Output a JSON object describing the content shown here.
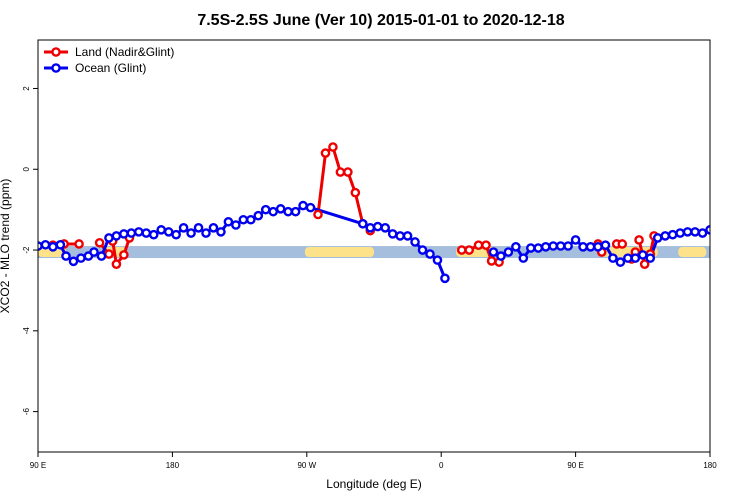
{
  "chart_data": {
    "type": "line",
    "title": "7.5S-2.5S June (Ver 10)   2015-01-01 to 2020-12-18",
    "xlabel": "Longitude (deg E)",
    "ylabel": "XCO2 - MLO trend (ppm)",
    "xlim": [
      90,
      450
    ],
    "ylim": [
      -7,
      3.2
    ],
    "x_ticks": [
      {
        "value": 90,
        "label": "90 E"
      },
      {
        "value": 162,
        "label": "180"
      },
      {
        "value": 234,
        "label": "90 W"
      },
      {
        "value": 306,
        "label": "0"
      },
      {
        "value": 378,
        "label": "90 E"
      },
      {
        "value": 450,
        "label": "180"
      }
    ],
    "y_ticks": [
      {
        "value": 2,
        "label": "2"
      },
      {
        "value": 0,
        "label": "0"
      },
      {
        "value": -2,
        "label": "-2"
      },
      {
        "value": -4,
        "label": "-4"
      },
      {
        "value": -6,
        "label": "-6"
      }
    ],
    "legend": {
      "placement": "top-left"
    },
    "band": {
      "y": -2.05,
      "color": "#a6bedd"
    },
    "land_strips": [
      {
        "x_start": 90,
        "x_end": 105
      },
      {
        "x_start": 124,
        "x_end": 137
      },
      {
        "x_start": 233,
        "x_end": 270
      },
      {
        "x_start": 314,
        "x_end": 336
      },
      {
        "x_start": 391,
        "x_end": 422
      },
      {
        "x_start": 406,
        "x_end": 414
      },
      {
        "x_start": 433,
        "x_end": 448
      }
    ],
    "land_strip_color": "#fde28a",
    "series": [
      {
        "name": "Land (Nadir&Glint)",
        "color": "#ee0000",
        "segments": [
          [
            [
              98,
              -1.88
            ],
            [
              104,
              -1.85
            ],
            [
              112,
              -1.85
            ]
          ],
          [
            [
              123,
              -1.82
            ],
            [
              128,
              -2.1
            ]
          ],
          [
            [
              130,
              -1.78
            ],
            [
              132,
              -2.35
            ],
            [
              136,
              -2.12
            ],
            [
              139,
              -1.7
            ]
          ],
          [
            [
              240,
              -1.12
            ],
            [
              244,
              0.4
            ],
            [
              248,
              0.55
            ],
            [
              252,
              -0.07
            ],
            [
              256,
              -0.07
            ],
            [
              260,
              -0.58
            ],
            [
              264,
              -1.35
            ],
            [
              268,
              -1.52
            ]
          ],
          [
            [
              317,
              -2.0
            ],
            [
              321,
              -2.0
            ],
            [
              326,
              -1.88
            ],
            [
              330,
              -1.88
            ],
            [
              333,
              -2.27
            ],
            [
              337,
              -2.3
            ]
          ],
          [
            [
              390,
              -1.85
            ],
            [
              392,
              -2.05
            ]
          ],
          [
            [
              400,
              -1.85
            ],
            [
              403,
              -1.85
            ]
          ],
          [
            [
              408,
              -2.22
            ],
            [
              410,
              -2.05
            ]
          ],
          [
            [
              412,
              -1.75
            ],
            [
              415,
              -2.35
            ],
            [
              418,
              -2.1
            ],
            [
              420,
              -1.65
            ]
          ]
        ]
      },
      {
        "name": "Ocean (Glint)",
        "color": "#0000ee",
        "points": [
          [
            90,
            -1.9
          ],
          [
            94,
            -1.87
          ],
          [
            98,
            -1.92
          ],
          [
            102,
            -1.87
          ],
          [
            105,
            -2.15
          ],
          [
            109,
            -2.28
          ],
          [
            113,
            -2.2
          ],
          [
            117,
            -2.15
          ],
          [
            120,
            -2.05
          ],
          [
            124,
            -2.15
          ],
          [
            128,
            -1.7
          ],
          [
            132,
            -1.65
          ],
          [
            136,
            -1.6
          ],
          [
            140,
            -1.58
          ],
          [
            144,
            -1.55
          ],
          [
            148,
            -1.58
          ],
          [
            152,
            -1.62
          ],
          [
            156,
            -1.5
          ],
          [
            160,
            -1.55
          ],
          [
            164,
            -1.62
          ],
          [
            168,
            -1.45
          ],
          [
            172,
            -1.58
          ],
          [
            176,
            -1.45
          ],
          [
            180,
            -1.58
          ],
          [
            184,
            -1.45
          ],
          [
            188,
            -1.55
          ],
          [
            192,
            -1.3
          ],
          [
            196,
            -1.38
          ],
          [
            200,
            -1.25
          ],
          [
            204,
            -1.25
          ],
          [
            208,
            -1.15
          ],
          [
            212,
            -1.0
          ],
          [
            216,
            -1.05
          ],
          [
            220,
            -0.98
          ],
          [
            224,
            -1.05
          ],
          [
            228,
            -1.05
          ],
          [
            232,
            -0.9
          ],
          [
            236,
            -0.95
          ],
          [
            264,
            -1.35
          ],
          [
            268,
            -1.45
          ],
          [
            272,
            -1.42
          ],
          [
            276,
            -1.45
          ],
          [
            280,
            -1.6
          ],
          [
            284,
            -1.65
          ],
          [
            288,
            -1.65
          ],
          [
            292,
            -1.8
          ],
          [
            296,
            -2.0
          ],
          [
            300,
            -2.1
          ],
          [
            304,
            -2.25
          ],
          [
            308,
            -2.7
          ]
        ],
        "ocean_tail": [
          [
            334,
            -2.05
          ],
          [
            338,
            -2.15
          ],
          [
            342,
            -2.05
          ],
          [
            346,
            -1.92
          ],
          [
            350,
            -2.2
          ],
          [
            354,
            -1.95
          ],
          [
            358,
            -1.95
          ],
          [
            362,
            -1.92
          ],
          [
            366,
            -1.9
          ],
          [
            370,
            -1.9
          ],
          [
            374,
            -1.9
          ],
          [
            378,
            -1.75
          ],
          [
            382,
            -1.92
          ],
          [
            386,
            -1.92
          ],
          [
            390,
            -1.92
          ],
          [
            394,
            -1.88
          ],
          [
            398,
            -2.2
          ],
          [
            402,
            -2.3
          ],
          [
            406,
            -2.2
          ],
          [
            410,
            -2.2
          ],
          [
            414,
            -2.12
          ],
          [
            418,
            -2.2
          ],
          [
            422,
            -1.7
          ],
          [
            426,
            -1.65
          ],
          [
            430,
            -1.62
          ],
          [
            434,
            -1.58
          ],
          [
            438,
            -1.55
          ],
          [
            442,
            -1.55
          ],
          [
            446,
            -1.58
          ],
          [
            450,
            -1.5
          ]
        ]
      }
    ]
  }
}
